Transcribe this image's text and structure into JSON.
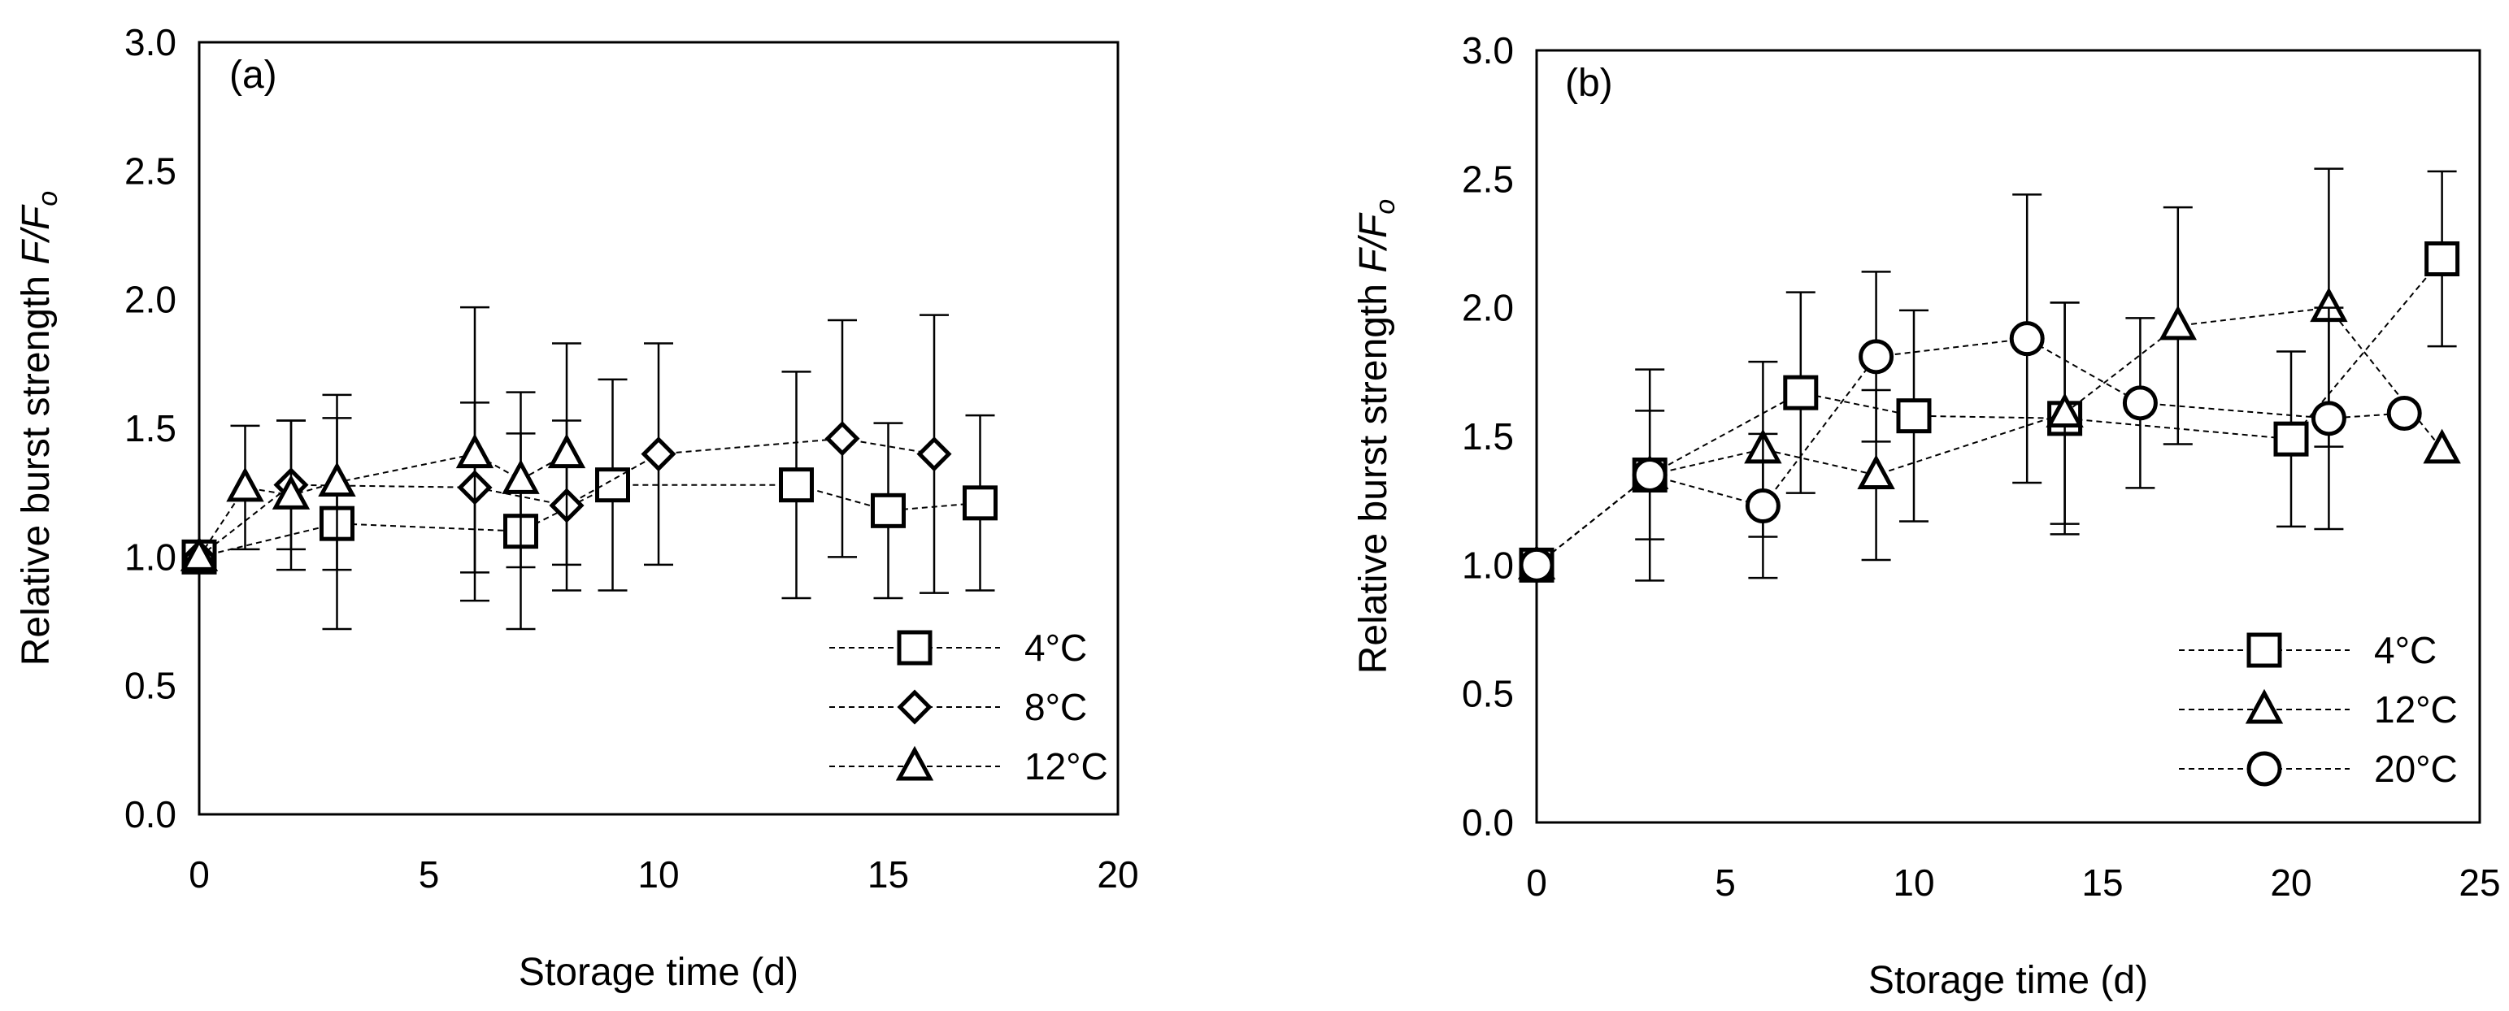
{
  "chart_data": [
    {
      "type": "scatter",
      "panel_label": "(a)",
      "xlabel": "Storage time (d)",
      "ylabel_main": "Relative burst strength ",
      "ylabel_italic": "F/F",
      "ylabel_sub": "o",
      "xlim": [
        0,
        20
      ],
      "ylim": [
        0,
        3
      ],
      "xticks": [
        "0",
        "5",
        "10",
        "15",
        "20"
      ],
      "yticks": [
        "0.0",
        "0.5",
        "1.0",
        "1.5",
        "2.0",
        "2.5",
        "3.0"
      ],
      "legend_position": "bottom-right",
      "series": [
        {
          "name": "4°C",
          "marker": "square",
          "points": [
            {
              "x": 0,
              "y": 1.0,
              "err": 0
            },
            {
              "x": 3,
              "y": 1.13,
              "err": 0.41
            },
            {
              "x": 7,
              "y": 1.1,
              "err": 0.38
            },
            {
              "x": 9,
              "y": 1.28,
              "err": 0.41
            },
            {
              "x": 13,
              "y": 1.28,
              "err": 0.44
            },
            {
              "x": 15,
              "y": 1.18,
              "err": 0.34
            },
            {
              "x": 17,
              "y": 1.21,
              "err": 0.34
            }
          ]
        },
        {
          "name": "8°C",
          "marker": "diamond",
          "points": [
            {
              "x": 0,
              "y": 1.0,
              "err": 0
            },
            {
              "x": 2,
              "y": 1.28,
              "err": 0.25
            },
            {
              "x": 6,
              "y": 1.27,
              "err": 0.33
            },
            {
              "x": 8,
              "y": 1.2,
              "err": 0.33
            },
            {
              "x": 10,
              "y": 1.4,
              "err": 0.43
            },
            {
              "x": 14,
              "y": 1.46,
              "err": 0.46
            },
            {
              "x": 16,
              "y": 1.4,
              "err": 0.54
            }
          ]
        },
        {
          "name": "12°C",
          "marker": "triangle",
          "points": [
            {
              "x": 0,
              "y": 1.0,
              "err": 0
            },
            {
              "x": 1,
              "y": 1.27,
              "err": 0.24
            },
            {
              "x": 2,
              "y": 1.24,
              "err": 0.29
            },
            {
              "x": 3,
              "y": 1.29,
              "err": 0.34
            },
            {
              "x": 6,
              "y": 1.4,
              "err": 0.57
            },
            {
              "x": 7,
              "y": 1.3,
              "err": 0.34
            },
            {
              "x": 8,
              "y": 1.4,
              "err": 0.43
            }
          ]
        }
      ]
    },
    {
      "type": "scatter",
      "panel_label": "(b)",
      "xlabel": "Storage time (d)",
      "ylabel_main": "Relative burst strength ",
      "ylabel_italic": "F/F",
      "ylabel_sub": "o",
      "xlim": [
        0,
        25
      ],
      "ylim": [
        0,
        3
      ],
      "xticks": [
        "0",
        "5",
        "10",
        "15",
        "20",
        "25"
      ],
      "yticks": [
        "0.0",
        "0.5",
        "1.0",
        "1.5",
        "2.0",
        "2.5",
        "3.0"
      ],
      "legend_position": "bottom-right",
      "series": [
        {
          "name": "4°C",
          "marker": "square",
          "points": [
            {
              "x": 0,
              "y": 1.0,
              "err": 0
            },
            {
              "x": 3,
              "y": 1.35,
              "err": 0.41
            },
            {
              "x": 7,
              "y": 1.67,
              "err": 0.39
            },
            {
              "x": 10,
              "y": 1.58,
              "err": 0.41
            },
            {
              "x": 14,
              "y": 1.57,
              "err": 0.45
            },
            {
              "x": 20,
              "y": 1.49,
              "err": 0.34
            },
            {
              "x": 24,
              "y": 2.19,
              "err": 0.34
            }
          ]
        },
        {
          "name": "12°C",
          "marker": "triangle",
          "points": [
            {
              "x": 0,
              "y": 1.0,
              "err": 0
            },
            {
              "x": 3,
              "y": 1.35,
              "err": 0.25
            },
            {
              "x": 6,
              "y": 1.45,
              "err": 0.34
            },
            {
              "x": 9,
              "y": 1.35,
              "err": 0.33
            },
            {
              "x": 14,
              "y": 1.59,
              "err": 0.43
            },
            {
              "x": 17,
              "y": 1.93,
              "err": 0.46
            },
            {
              "x": 21,
              "y": 2.0,
              "err": 0.54
            },
            {
              "x": 24,
              "y": 1.45,
              "err": 0
            }
          ]
        },
        {
          "name": "20°C",
          "marker": "circle",
          "points": [
            {
              "x": 0,
              "y": 1.0,
              "err": 0
            },
            {
              "x": 3,
              "y": 1.35,
              "err": 0
            },
            {
              "x": 6,
              "y": 1.23,
              "err": 0.28
            },
            {
              "x": 9,
              "y": 1.81,
              "err": 0.33
            },
            {
              "x": 13,
              "y": 1.88,
              "err": 0.56
            },
            {
              "x": 16,
              "y": 1.63,
              "err": 0.33
            },
            {
              "x": 21,
              "y": 1.57,
              "err": 0.43
            },
            {
              "x": 23,
              "y": 1.59,
              "err": 0
            }
          ]
        }
      ]
    }
  ]
}
